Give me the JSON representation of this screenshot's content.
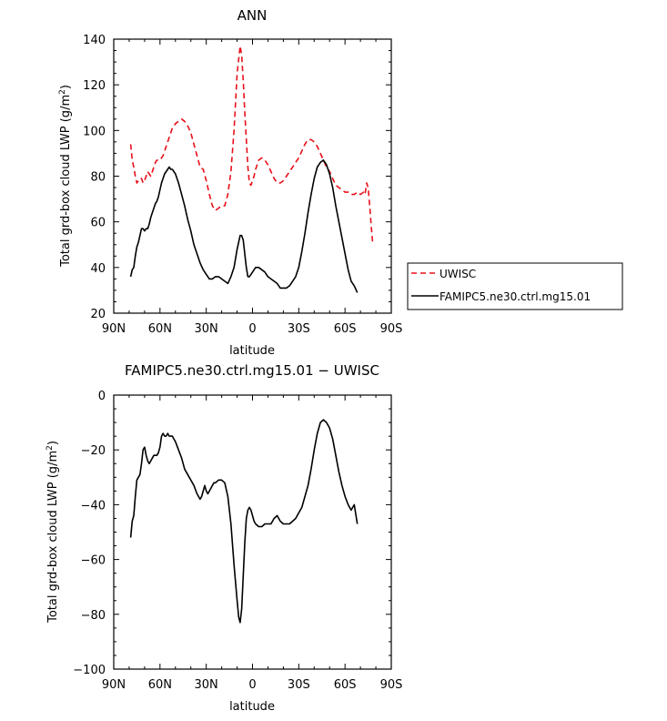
{
  "chart_data": [
    {
      "type": "line",
      "title": "ANN",
      "xlabel": "latitude",
      "ylabel": "Total grd-box cloud LWP (g/m",
      "ylabel_sup": "2",
      "ylabel_close": ")",
      "xlim": [
        90,
        -90
      ],
      "ylim": [
        20,
        140
      ],
      "xticks": [
        {
          "value": 90,
          "label": "90N"
        },
        {
          "value": 60,
          "label": "60N"
        },
        {
          "value": 30,
          "label": "30N"
        },
        {
          "value": 0,
          "label": "0"
        },
        {
          "value": -30,
          "label": "30S"
        },
        {
          "value": -60,
          "label": "60S"
        },
        {
          "value": -90,
          "label": "90S"
        }
      ],
      "yticks": [
        20,
        40,
        60,
        80,
        100,
        120,
        140
      ],
      "legend_position": "right",
      "series": [
        {
          "name": "UWISC",
          "color": "#e8101a",
          "dash": "dashed",
          "x": [
            79,
            78,
            77,
            76,
            75,
            74,
            73,
            72,
            71,
            70,
            69,
            68,
            67,
            66,
            65,
            64,
            63,
            62,
            61,
            60,
            59,
            58,
            57,
            56,
            55,
            54,
            53,
            52,
            51,
            50,
            48,
            46,
            44,
            42,
            40,
            38,
            36,
            34,
            32,
            30,
            28,
            26,
            24,
            22,
            20,
            18,
            16,
            14,
            12,
            10,
            8,
            7,
            6,
            5,
            4,
            3,
            2,
            1,
            0,
            -1,
            -2,
            -4,
            -6,
            -8,
            -10,
            -12,
            -14,
            -16,
            -18,
            -20,
            -22,
            -24,
            -26,
            -28,
            -30,
            -32,
            -34,
            -36,
            -38,
            -40,
            -42,
            -44,
            -46,
            -48,
            -50,
            -52,
            -54,
            -56,
            -58,
            -60,
            -62,
            -64,
            -66,
            -68,
            -70,
            -72,
            -73,
            -74,
            -75,
            -76,
            -77,
            -78
          ],
          "y": [
            94,
            87,
            84,
            80,
            77,
            78,
            79,
            79,
            77,
            78,
            80,
            82,
            81,
            80,
            82,
            84,
            86,
            87,
            87,
            87,
            88,
            89,
            91,
            93,
            95,
            97,
            99,
            101,
            102,
            103,
            104,
            105,
            104,
            102,
            99,
            94,
            89,
            84,
            83,
            78,
            72,
            67,
            65,
            66,
            67,
            67,
            72,
            82,
            100,
            125,
            137,
            133,
            122,
            108,
            96,
            84,
            77,
            76,
            78,
            80,
            83,
            87,
            88,
            87,
            85,
            82,
            79,
            77,
            77,
            78,
            80,
            82,
            84,
            86,
            88,
            91,
            94,
            96,
            96,
            95,
            93,
            90,
            87,
            84,
            82,
            79,
            76,
            75,
            74,
            73,
            73,
            72,
            72,
            73,
            72,
            73,
            72,
            77,
            75,
            67,
            58,
            50
          ]
        },
        {
          "name": "FAMIPC5.ne30.ctrl.mg15.01",
          "color": "#000000",
          "dash": "solid",
          "x": [
            79,
            78,
            77,
            76,
            75,
            74,
            73,
            72,
            71,
            70,
            69,
            68,
            67,
            66,
            65,
            64,
            63,
            62,
            61,
            60,
            59,
            58,
            57,
            56,
            55,
            54,
            53,
            52,
            51,
            50,
            48,
            46,
            44,
            42,
            40,
            38,
            36,
            34,
            32,
            30,
            28,
            26,
            24,
            22,
            20,
            18,
            16,
            14,
            12,
            10,
            8,
            7,
            6,
            5,
            4,
            3,
            2,
            1,
            0,
            -1,
            -2,
            -4,
            -6,
            -8,
            -10,
            -12,
            -14,
            -16,
            -18,
            -20,
            -22,
            -24,
            -26,
            -28,
            -30,
            -32,
            -34,
            -36,
            -38,
            -40,
            -42,
            -44,
            -46,
            -48,
            -50,
            -52,
            -54,
            -56,
            -58,
            -60,
            -62,
            -64,
            -66,
            -68
          ],
          "y": [
            36,
            39,
            40,
            45,
            49,
            51,
            54,
            57,
            57,
            56,
            57,
            57,
            59,
            62,
            64,
            66,
            68,
            69,
            71,
            74,
            77,
            79,
            81,
            82,
            83,
            84,
            83,
            83,
            82,
            81,
            77,
            72,
            67,
            61,
            56,
            50,
            46,
            42,
            39,
            37,
            35,
            35,
            36,
            36,
            35,
            34,
            33,
            36,
            40,
            48,
            54,
            54,
            52,
            46,
            40,
            36,
            36,
            37,
            38,
            39,
            40,
            40,
            39,
            38,
            36,
            35,
            34,
            33,
            31,
            31,
            31,
            32,
            34,
            36,
            40,
            47,
            55,
            64,
            72,
            79,
            84,
            86,
            87,
            85,
            81,
            75,
            67,
            60,
            53,
            46,
            39,
            34,
            32,
            29
          ]
        }
      ]
    },
    {
      "type": "line",
      "title": "FAMIPC5.ne30.ctrl.mg15.01 − UWISC",
      "xlabel": "latitude",
      "ylabel": "Total grd-box cloud LWP (g/m",
      "ylabel_sup": "2",
      "ylabel_close": ")",
      "xlim": [
        90,
        -90
      ],
      "ylim": [
        -100,
        0
      ],
      "xticks": [
        {
          "value": 90,
          "label": "90N"
        },
        {
          "value": 60,
          "label": "60N"
        },
        {
          "value": 30,
          "label": "30N"
        },
        {
          "value": 0,
          "label": "0"
        },
        {
          "value": -30,
          "label": "30S"
        },
        {
          "value": -60,
          "label": "60S"
        },
        {
          "value": -90,
          "label": "90S"
        }
      ],
      "yticks": [
        -100,
        -80,
        -60,
        -40,
        -20,
        0
      ],
      "series": [
        {
          "color": "#000000",
          "dash": "solid",
          "x": [
            79,
            78,
            77,
            76,
            75,
            74,
            73,
            72,
            71,
            70,
            69,
            68,
            67,
            66,
            65,
            64,
            63,
            62,
            61,
            60,
            59,
            58,
            57,
            56,
            55,
            54,
            53,
            52,
            51,
            50,
            48,
            46,
            44,
            42,
            40,
            38,
            36,
            34,
            33,
            32,
            31,
            30,
            29,
            28,
            27,
            26,
            25,
            24,
            22,
            20,
            18,
            16,
            14,
            12,
            10,
            9,
            8,
            7,
            6,
            5,
            4,
            3,
            2,
            1,
            0,
            -1,
            -2,
            -4,
            -6,
            -8,
            -10,
            -12,
            -14,
            -16,
            -18,
            -20,
            -22,
            -24,
            -26,
            -28,
            -30,
            -32,
            -34,
            -36,
            -38,
            -40,
            -42,
            -44,
            -46,
            -48,
            -50,
            -52,
            -54,
            -56,
            -58,
            -60,
            -62,
            -64,
            -66,
            -68
          ],
          "y": [
            -52,
            -46,
            -44,
            -37,
            -31,
            -30,
            -29,
            -25,
            -20,
            -19,
            -22,
            -24,
            -25,
            -24,
            -23,
            -22,
            -22,
            -22,
            -21,
            -19,
            -15,
            -14,
            -15,
            -15,
            -14,
            -15,
            -15,
            -15,
            -16,
            -17,
            -20,
            -23,
            -27,
            -29,
            -31,
            -33,
            -36,
            -38,
            -37,
            -35,
            -33,
            -35,
            -36,
            -35,
            -34,
            -33,
            -32,
            -32,
            -31,
            -31,
            -32,
            -37,
            -47,
            -62,
            -75,
            -81,
            -83,
            -78,
            -66,
            -54,
            -45,
            -42,
            -41,
            -42,
            -44,
            -46,
            -47,
            -48,
            -48,
            -47,
            -47,
            -47,
            -45,
            -44,
            -46,
            -47,
            -47,
            -47,
            -46,
            -45,
            -43,
            -41,
            -37,
            -33,
            -27,
            -20,
            -14,
            -10,
            -9,
            -10,
            -12,
            -16,
            -22,
            -28,
            -33,
            -37,
            -40,
            -42,
            -40,
            -47
          ]
        }
      ]
    }
  ]
}
